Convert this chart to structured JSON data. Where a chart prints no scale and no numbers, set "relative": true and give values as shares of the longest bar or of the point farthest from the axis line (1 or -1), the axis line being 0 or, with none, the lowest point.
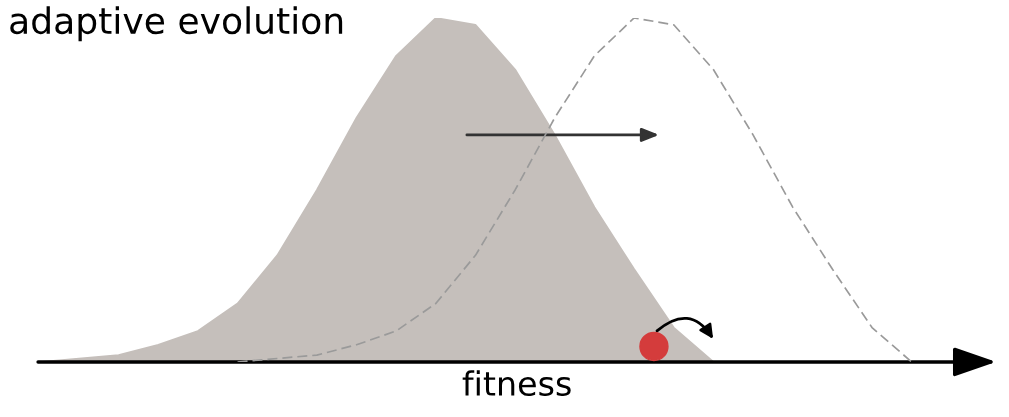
{
  "chart_data": {
    "type": "area",
    "title": "adaptive evolution",
    "xlabel": "fitness",
    "relative": true,
    "categories": [
      null,
      null,
      null,
      null,
      null,
      null,
      null,
      null,
      null,
      null,
      null,
      null,
      null,
      null,
      null,
      null,
      null,
      null,
      null,
      null,
      null,
      null,
      null,
      null,
      null
    ],
    "series": [
      {
        "color": "#c5bfbb",
        "values": [
          0,
          0.01,
          0.02,
          0.05,
          0.09,
          0.17,
          0.31,
          0.5,
          0.71,
          0.89,
          1,
          0.98,
          0.85,
          0.66,
          0.45,
          0.27,
          0.1,
          0,
          0,
          0,
          0,
          0,
          0,
          0,
          0
        ]
      },
      {
        "type": "line",
        "color": "#9a9a9a",
        "line_style": "dashed",
        "values": [
          null,
          null,
          null,
          null,
          null,
          0,
          0.01,
          0.02,
          0.05,
          0.09,
          0.17,
          0.31,
          0.5,
          0.71,
          0.89,
          1,
          0.98,
          0.85,
          0.66,
          0.45,
          0.27,
          0.1,
          0,
          null,
          null
        ]
      }
    ]
  }
}
